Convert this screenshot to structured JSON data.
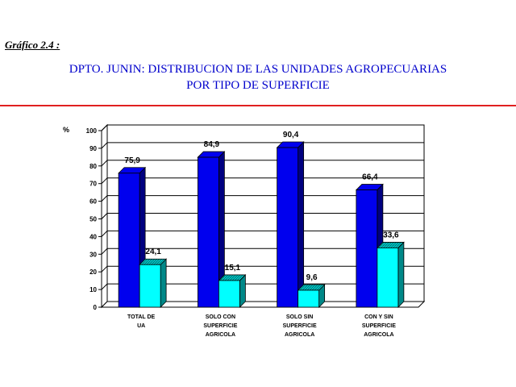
{
  "figure_label": "Gráfico 2.4 :",
  "title_line1": "DPTO. JUNIN: DISTRIBUCION DE LAS UNIDADES AGROPECUARIAS",
  "title_line2": "POR TIPO DE SUPERFICIE",
  "colors": {
    "series1": "#0000ee",
    "series1_dark": "#000080",
    "series2": "#00ffff",
    "series2_dark": "#008888",
    "rule": "#e02020",
    "title": "#0000cc"
  },
  "chart_data": {
    "type": "bar",
    "style": "3d-clustered",
    "ylabel": "%",
    "ylim": [
      0,
      100
    ],
    "yticks": [
      0,
      10,
      20,
      30,
      40,
      50,
      60,
      70,
      80,
      90,
      100
    ],
    "grid": true,
    "categories": [
      [
        "TOTAL DE",
        "UA"
      ],
      [
        "SOLO CON",
        "SUPERFICIE",
        "AGRICOLA"
      ],
      [
        "SOLO SIN",
        "SUPERFICIE",
        "AGRICOLA"
      ],
      [
        "CON Y SIN",
        "SUPERFICIE",
        "AGRICOLA"
      ]
    ],
    "series": [
      {
        "values": [
          75.9,
          84.9,
          90.4,
          66.4
        ],
        "labels": [
          "75,9",
          "84,9",
          "90,4",
          "66,4"
        ]
      },
      {
        "values": [
          24.1,
          15.1,
          9.6,
          33.6
        ],
        "labels": [
          "24,1",
          "15,1",
          "9,6",
          "33,6"
        ]
      }
    ]
  }
}
